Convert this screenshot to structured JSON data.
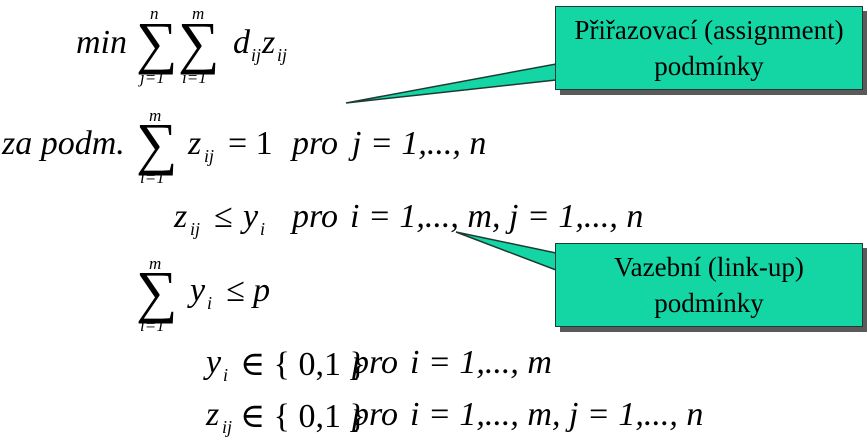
{
  "objective": {
    "min": "min",
    "sum1_upper": "n",
    "sum1_lower": "j=1",
    "sum2_upper": "m",
    "sum2_lower": "i=1",
    "d": "d",
    "d_sub": "ij",
    "z": "z",
    "z_sub": "ij"
  },
  "constraint1": {
    "prefix": "za  podm.",
    "sum_upper": "m",
    "sum_lower": "i=1",
    "z": "z",
    "z_sub": "ij",
    "eq": "= 1",
    "pro": "pro",
    "range": "j = 1,..., n"
  },
  "constraint2": {
    "z": "z",
    "z_sub": "ij",
    "le": "≤",
    "y": "y",
    "y_sub": "i",
    "pro": "pro",
    "range": "i = 1,..., m,  j = 1,..., n"
  },
  "constraint3": {
    "sum_upper": "m",
    "sum_lower": "i=1",
    "y": "y",
    "y_sub": "i",
    "rel": "≤ p"
  },
  "constraint4": {
    "y": "y",
    "y_sub": "i",
    "set": "∈ { 0,1 }",
    "pro": "pro",
    "range": "i = 1,..., m"
  },
  "constraint5": {
    "z": "z",
    "z_sub": "ij",
    "set": "∈ { 0,1 }",
    "pro": "pro",
    "range": "i = 1,..., m,  j = 1,..., n"
  },
  "callouts": {
    "assignment": {
      "line1": "Přiřazovací (assignment)",
      "line2": "podmínky"
    },
    "linkup": {
      "line1": "Vazební (link-up)",
      "line2": "podmínky"
    }
  },
  "colors": {
    "callout_fill": "#14d6a5",
    "callout_border": "#1d3b33",
    "callout_shadow": "#5a5a5a"
  }
}
